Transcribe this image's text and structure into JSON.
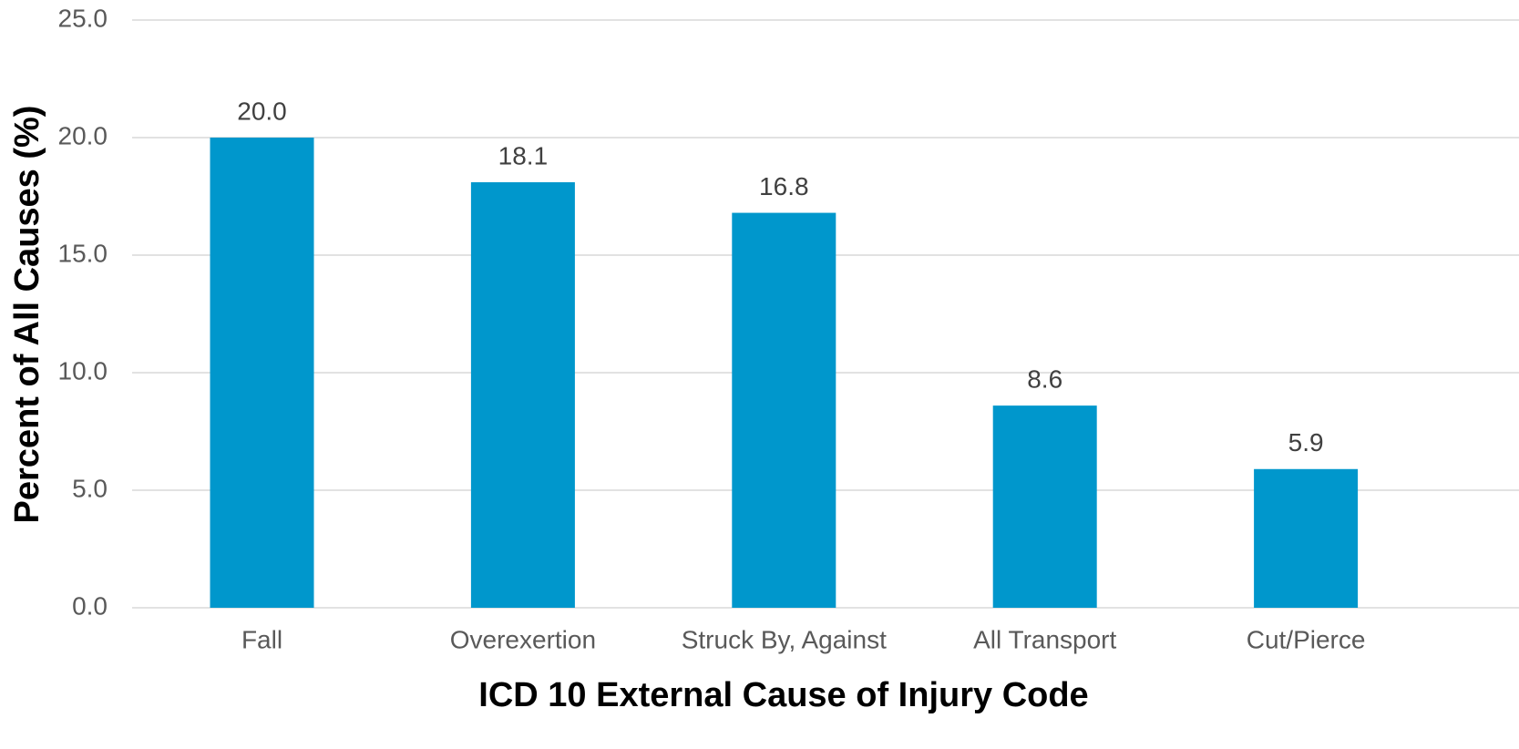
{
  "chart_data": {
    "type": "bar",
    "categories": [
      "Fall",
      "Overexertion",
      "Struck By, Against",
      "All Transport",
      "Cut/Pierce"
    ],
    "values": [
      20.0,
      18.1,
      16.8,
      8.6,
      5.9
    ],
    "data_labels": [
      "20.0",
      "18.1",
      "16.8",
      "8.6",
      "5.9"
    ],
    "title": "",
    "xlabel": "ICD 10 External Cause of Injury Code",
    "ylabel": "Percent of All Causes (%)",
    "ylim": [
      0,
      25
    ],
    "yticks": [
      0,
      5,
      10,
      15,
      20,
      25
    ],
    "ytick_labels": [
      "0.0",
      "5.0",
      "10.0",
      "15.0",
      "20.0",
      "25.0"
    ],
    "grid": "horizontal",
    "legend": "none",
    "bar_color": "#0097CC"
  }
}
